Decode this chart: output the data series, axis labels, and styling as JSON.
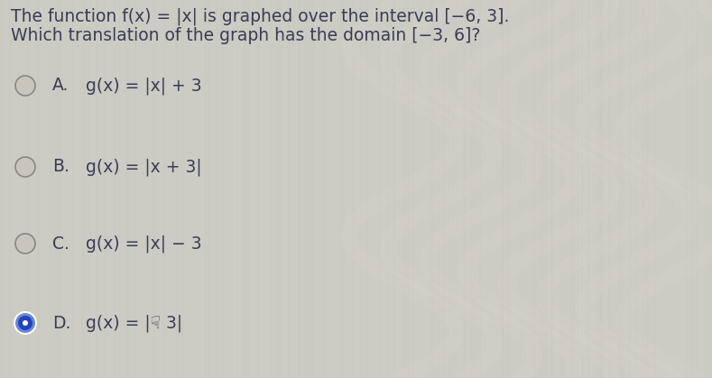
{
  "title_line1": "The function f(x) = |x| is graphed over the interval [−6, 3].",
  "title_line2": "Which translation of the graph has the domain [−3, 6]?",
  "options": [
    {
      "label": "A.",
      "text": "g(x) = |x| + 3",
      "selected": false
    },
    {
      "label": "B.",
      "text": "g(x) = |x + 3|",
      "selected": false
    },
    {
      "label": "C.",
      "text": "g(x) = |x| − 3",
      "selected": false
    },
    {
      "label": "D.",
      "text": "g(x) = |☟ 3|",
      "selected": true
    }
  ],
  "bg_color_left": "#cccbc5",
  "bg_color_right": "#d4d0cb",
  "text_color": "#3a3d52",
  "circle_edge_color": "#888888",
  "circle_bg_color": "#c8c5bc",
  "selected_fill": "#2244bb",
  "selected_ring": "#6688dd",
  "font_size_title": 13.5,
  "font_size_option": 13.5,
  "fig_width": 7.89,
  "fig_height": 4.19,
  "dpi": 100
}
